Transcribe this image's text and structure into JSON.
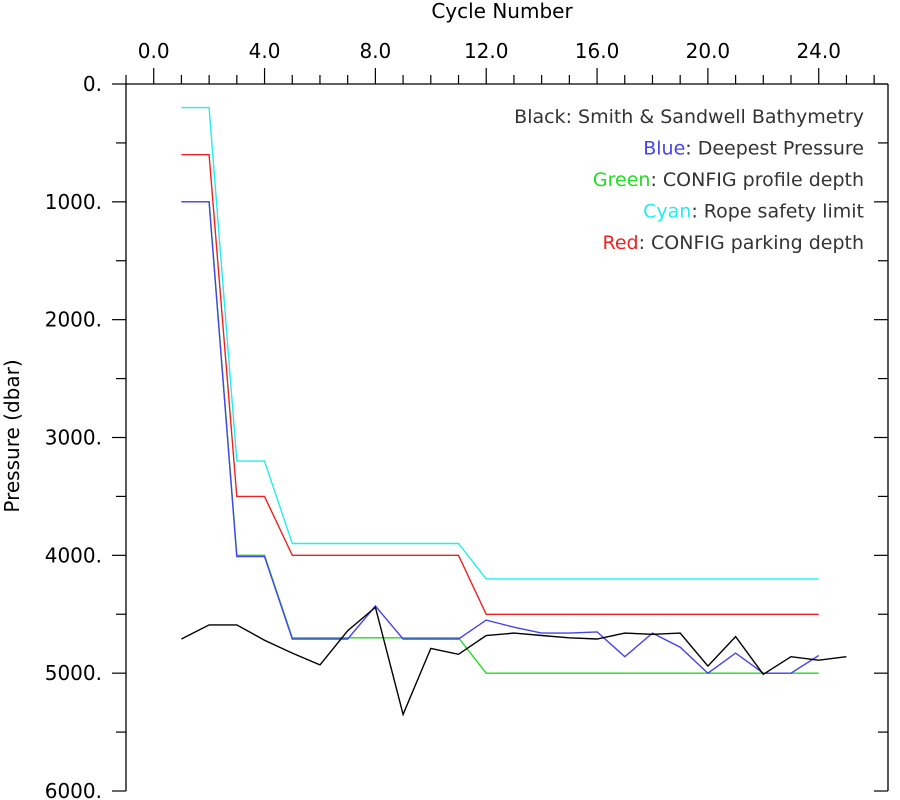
{
  "chart_data": {
    "type": "line",
    "xlabel": "Cycle Number",
    "ylabel": "Pressure (dbar)",
    "xlim": [
      -1.0,
      26.5
    ],
    "ylim": [
      0,
      6000
    ],
    "y_inverted": true,
    "x_axis_position": "top",
    "x_ticks": [
      0,
      4,
      8,
      12,
      16,
      20,
      24
    ],
    "x_tick_labels": [
      "0.0",
      "4.0",
      "8.0",
      "12.0",
      "16.0",
      "20.0",
      "24.0"
    ],
    "x_minor_step": 1,
    "y_ticks": [
      0,
      1000,
      2000,
      3000,
      4000,
      5000,
      6000
    ],
    "y_tick_labels": [
      "0.",
      "1000.",
      "2000.",
      "3000.",
      "4000.",
      "5000.",
      "6000."
    ],
    "y_minor_step": 500,
    "grid": false,
    "legend_position": "top-right",
    "legend": [
      {
        "key": "Black",
        "rest": ": Smith & Sandwell Bathymetry",
        "color": "#000000"
      },
      {
        "key": "Blue",
        "rest": ": Deepest Pressure",
        "color": "#4444ee"
      },
      {
        "key": "Green",
        "rest": ": CONFIG profile depth",
        "color": "#22dd22"
      },
      {
        "key": "Cyan",
        "rest": ": Rope safety limit",
        "color": "#22eeee"
      },
      {
        "key": "Red",
        "rest": ": CONFIG parking depth",
        "color": "#ee2222"
      }
    ],
    "series": [
      {
        "color": "#22eeee",
        "step": true,
        "x": [
          1,
          2,
          3,
          4,
          5,
          6,
          7,
          8,
          9,
          10,
          11,
          12,
          13,
          14,
          15,
          16,
          17,
          18,
          19,
          20,
          21,
          22,
          23,
          24
        ],
        "values": [
          200,
          200,
          3200,
          3200,
          3900,
          3900,
          3900,
          3900,
          3900,
          3900,
          3900,
          4200,
          4200,
          4200,
          4200,
          4200,
          4200,
          4200,
          4200,
          4200,
          4200,
          4200,
          4200,
          4200
        ]
      },
      {
        "color": "#ee2222",
        "step": true,
        "x": [
          1,
          2,
          3,
          4,
          5,
          6,
          7,
          8,
          9,
          10,
          11,
          12,
          13,
          14,
          15,
          16,
          17,
          18,
          19,
          20,
          21,
          22,
          23,
          24
        ],
        "values": [
          600,
          600,
          3500,
          3500,
          4000,
          4000,
          4000,
          4000,
          4000,
          4000,
          4000,
          4500,
          4500,
          4500,
          4500,
          4500,
          4500,
          4500,
          4500,
          4500,
          4500,
          4500,
          4500,
          4500
        ]
      },
      {
        "color": "#22dd22",
        "step": true,
        "x": [
          1,
          2,
          3,
          4,
          5,
          6,
          7,
          8,
          9,
          10,
          11,
          12,
          13,
          14,
          15,
          16,
          17,
          18,
          19,
          20,
          21,
          22,
          23,
          24
        ],
        "values": [
          1000,
          1000,
          4000,
          4000,
          4700,
          4700,
          4700,
          4700,
          4700,
          4700,
          4700,
          5000,
          5000,
          5000,
          5000,
          5000,
          5000,
          5000,
          5000,
          5000,
          5000,
          5000,
          5000,
          5000
        ]
      },
      {
        "color": "#4444ee",
        "step": false,
        "x": [
          1,
          2,
          3,
          4,
          5,
          6,
          7,
          8,
          9,
          10,
          11,
          12,
          13,
          14,
          15,
          16,
          17,
          18,
          19,
          20,
          21,
          22,
          23,
          24
        ],
        "values": [
          1000,
          1000,
          4010,
          4010,
          4710,
          4710,
          4710,
          4430,
          4710,
          4710,
          4710,
          4550,
          4610,
          4660,
          4660,
          4650,
          4860,
          4660,
          4780,
          5000,
          4830,
          5000,
          5000,
          4850
        ]
      },
      {
        "color": "#000000",
        "step": false,
        "x": [
          1,
          2,
          3,
          4,
          5,
          6,
          7,
          8,
          9,
          10,
          11,
          12,
          13,
          14,
          15,
          16,
          17,
          18,
          19,
          20,
          21,
          22,
          23,
          24,
          25
        ],
        "values": [
          4710,
          4590,
          4590,
          4720,
          4830,
          4930,
          4640,
          4440,
          5350,
          4790,
          4840,
          4680,
          4660,
          4680,
          4700,
          4710,
          4660,
          4670,
          4660,
          4940,
          4690,
          5010,
          4860,
          4890,
          4860
        ]
      }
    ]
  }
}
